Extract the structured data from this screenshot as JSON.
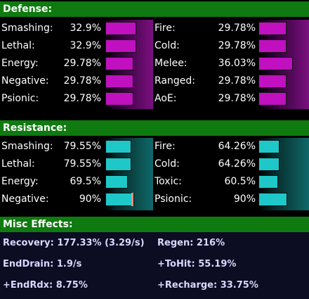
{
  "defense": {
    "title": "Defense:",
    "left": [
      {
        "label": "Smashing:",
        "value": "32.9%",
        "fill": 0.329
      },
      {
        "label": "Lethal:",
        "value": "32.9%",
        "fill": 0.329
      },
      {
        "label": "Energy:",
        "value": "29.78%",
        "fill": 0.2978
      },
      {
        "label": "Negative:",
        "value": "29.78%",
        "fill": 0.2978
      },
      {
        "label": "Psionic:",
        "value": "29.78%",
        "fill": 0.2978
      }
    ],
    "right": [
      {
        "label": "Fire:",
        "value": "29.78%",
        "fill": 0.2978
      },
      {
        "label": "Cold:",
        "value": "29.78%",
        "fill": 0.2978
      },
      {
        "label": "Melee:",
        "value": "36.03%",
        "fill": 0.3603
      },
      {
        "label": "Ranged:",
        "value": "29.78%",
        "fill": 0.2978
      },
      {
        "label": "AoE:",
        "value": "29.78%",
        "fill": 0.2978
      }
    ]
  },
  "resistance": {
    "title": "Resistance:",
    "left": [
      {
        "label": "Smashing:",
        "value": "79.55%",
        "fill": 0.7955
      },
      {
        "label": "Lethal:",
        "value": "79.55%",
        "fill": 0.7955
      },
      {
        "label": "Energy:",
        "value": "69.5%",
        "fill": 0.695
      },
      {
        "label": "Negative:",
        "value": "90%",
        "fill": 0.9
      }
    ],
    "right": [
      {
        "label": "Fire:",
        "value": "64.26%",
        "fill": 0.6426
      },
      {
        "label": "Cold:",
        "value": "64.26%",
        "fill": 0.6426
      },
      {
        "label": "Toxic:",
        "value": "60.5%",
        "fill": 0.605
      },
      {
        "label": "Psionic:",
        "value": "90%",
        "fill": 0.9
      }
    ]
  },
  "misc": {
    "title": "Misc Effects:",
    "items": [
      {
        "text": "Recovery: 177.33% (3.29/s)"
      },
      {
        "text": "Regen: 216%"
      },
      {
        "text": "EndDrain: 1.9/s"
      },
      {
        "text": "+ToHit: 55.19%"
      },
      {
        "text": "+EndRdx: 8.75%"
      },
      {
        "text": "+Recharge: 33.75%"
      }
    ]
  },
  "colors": {
    "header": "#0f7a0f",
    "defense_bar": "#c010c0",
    "resistance_bar": "#1ec8c8",
    "defense_glow": "#7a1080",
    "resistance_glow": "#106868",
    "misc_bg": "#0c0c22"
  }
}
